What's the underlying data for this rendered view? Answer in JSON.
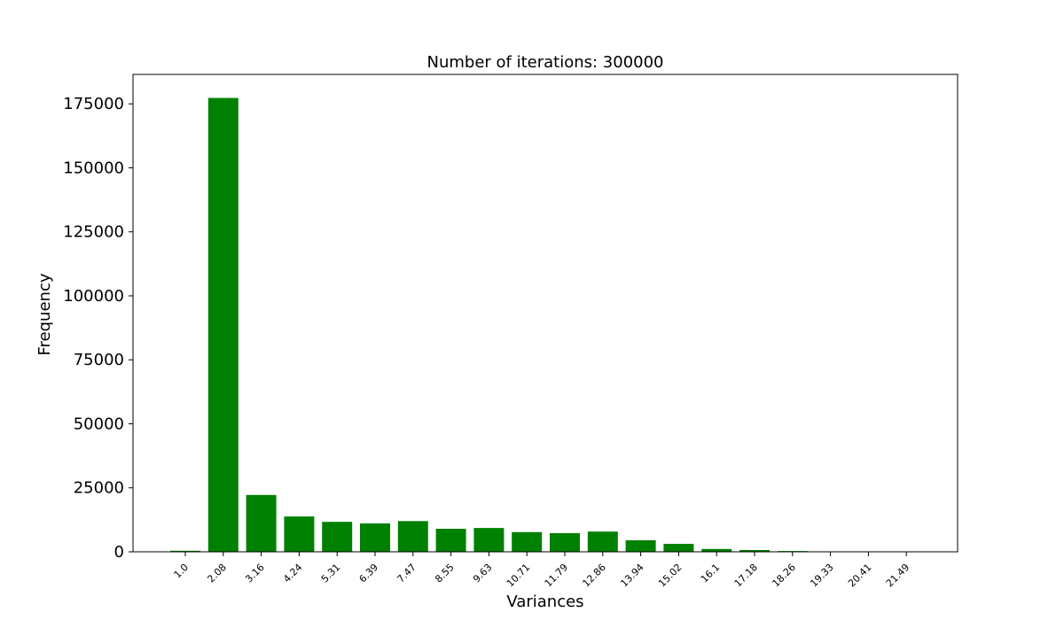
{
  "chart_data": {
    "type": "bar",
    "title": "Number of iterations: 300000",
    "xlabel": "Variances",
    "ylabel": "Frequency",
    "categories": [
      "1.0",
      "2.08",
      "3.16",
      "4.24",
      "5.31",
      "6.39",
      "7.47",
      "8.55",
      "9.63",
      "10.71",
      "11.79",
      "12.86",
      "13.94",
      "15.02",
      "16.1",
      "17.18",
      "18.26",
      "19.33",
      "20.41",
      "21.49"
    ],
    "values": [
      400,
      177300,
      22200,
      13800,
      11700,
      11100,
      12000,
      9000,
      9300,
      7700,
      7300,
      7900,
      4500,
      3100,
      1100,
      700,
      300,
      0,
      0,
      0
    ],
    "ylim": [
      0,
      186500
    ],
    "yticks": [
      0,
      25000,
      50000,
      75000,
      100000,
      125000,
      150000,
      175000
    ],
    "bar_color": "#008000",
    "grid": false,
    "legend": "none"
  }
}
